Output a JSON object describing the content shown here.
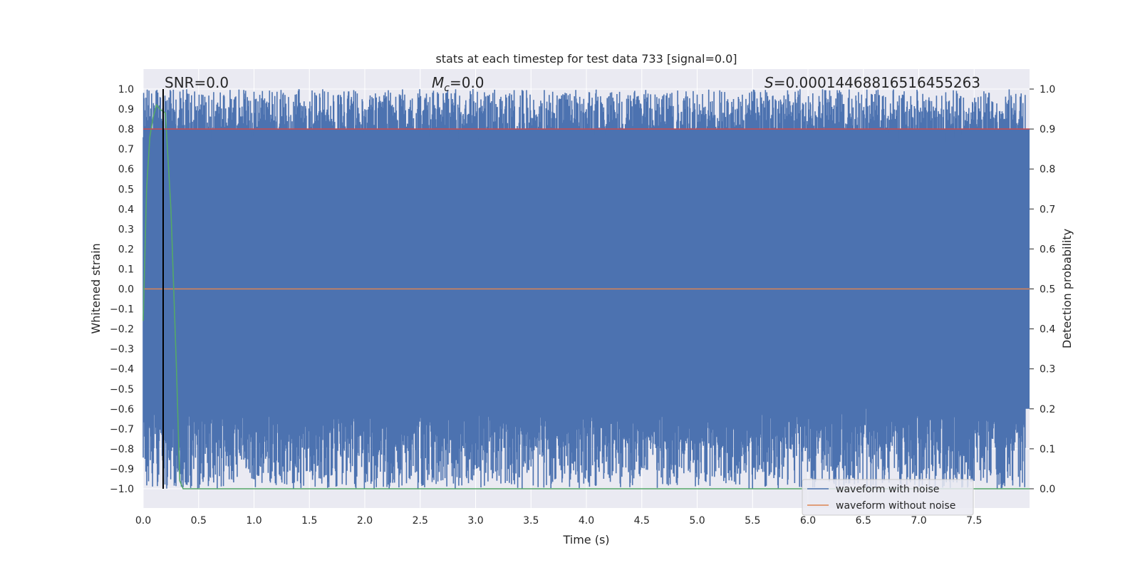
{
  "chart_data": {
    "type": "line",
    "title": "stats at each timestep for test data 733 [signal=0.0]",
    "xlabel": "Time (s)",
    "ylabel": "Whitened strain",
    "ylabel_right": "Detection probability",
    "xlim": [
      0.0,
      8.0
    ],
    "ylim": [
      -1.0,
      1.0
    ],
    "ylim_right": [
      0.0,
      1.0
    ],
    "x_ticks": [
      "0.0",
      "0.5",
      "1.0",
      "1.5",
      "2.0",
      "2.5",
      "3.0",
      "3.5",
      "4.0",
      "4.5",
      "5.0",
      "5.5",
      "6.0",
      "6.5",
      "7.0",
      "7.5"
    ],
    "y_ticks": [
      "1.0",
      "0.9",
      "0.8",
      "0.7",
      "0.6",
      "0.5",
      "0.4",
      "0.3",
      "0.2",
      "0.1",
      "0.0",
      "−0.1",
      "−0.2",
      "−0.3",
      "−0.4",
      "−0.5",
      "−0.6",
      "−0.7",
      "−0.8",
      "−0.9",
      "−1.0"
    ],
    "y_ticks_right": [
      "1.0",
      "0.9",
      "0.8",
      "0.7",
      "0.6",
      "0.5",
      "0.4",
      "0.3",
      "0.2",
      "0.1",
      "0.0"
    ],
    "grid": true,
    "annotations": {
      "snr": "SNR=0.0",
      "mc_symbol": "M",
      "mc_sub": "c",
      "mc_value": "=0.0",
      "s_symbol": "S",
      "s_value": "=0.00014468816516455263"
    },
    "legend": {
      "placement": "lower-right",
      "entries": [
        "waveform with noise",
        "waveform without noise"
      ]
    },
    "series": [
      {
        "name": "waveform with noise",
        "color": "#4c72b0",
        "axis": "left",
        "description_range": [
          -1.0,
          1.0
        ]
      },
      {
        "name": "waveform without noise",
        "color": "#dd8452",
        "axis": "left",
        "x": [
          0.0,
          8.0
        ],
        "y": [
          0.0,
          0.0
        ]
      },
      {
        "color": "#55a868",
        "axis": "right",
        "x": [
          0.0,
          0.03,
          0.06,
          0.09,
          0.12,
          0.15,
          0.2,
          0.25,
          0.3,
          0.33,
          0.36,
          8.0
        ],
        "y": [
          0.42,
          0.75,
          0.88,
          0.93,
          0.96,
          0.95,
          0.94,
          0.7,
          0.3,
          0.02,
          0.0,
          0.0
        ]
      },
      {
        "color": "#c44e52",
        "axis": "right",
        "x": [
          0.0,
          8.0
        ],
        "y": [
          0.9,
          0.9
        ]
      }
    ],
    "marker_line": {
      "x": 0.18,
      "color": "#000000"
    }
  }
}
